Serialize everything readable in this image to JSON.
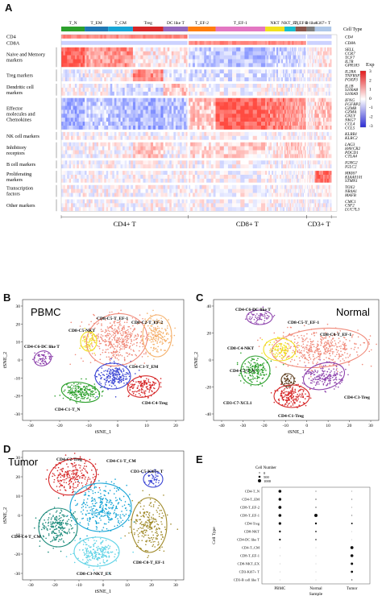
{
  "panel_labels": {
    "a": "A",
    "b": "B",
    "c": "C",
    "d": "D",
    "e": "E"
  },
  "heatmap": {
    "clusters": [
      {
        "label": "T_N",
        "color": "#2ca02c"
      },
      {
        "label": "T_EM",
        "color": "#1f77b4"
      },
      {
        "label": "T_CM",
        "color": "#17a5d6"
      },
      {
        "label": "Treg",
        "color": "#d62728"
      },
      {
        "label": "DC like T",
        "color": "#9467bd"
      },
      {
        "label": "T_EF-2",
        "color": "#ff7f0e"
      },
      {
        "label": "T_EF-1",
        "color": "#e377c2"
      },
      {
        "label": "NKT",
        "color": "#f1e11d"
      },
      {
        "label": "NKT_EX",
        "color": "#17becf"
      },
      {
        "label": "T_EF-1",
        "color": "#8c564b"
      },
      {
        "label": "B-like",
        "color": "#7f7f7f"
      },
      {
        "label": "Ki67+ T",
        "color": "#aec7e8"
      }
    ],
    "cell_type_label": "Cell Type",
    "categories": [
      {
        "name": "CD4",
        "genes": [
          "CD4"
        ]
      },
      {
        "name": "CD8A",
        "genes": [
          "CD8A"
        ]
      },
      {
        "name": "Naive and Memory markers",
        "genes": [
          "SELL",
          "CCR7",
          "TCF7",
          "IL7R",
          "GPR183"
        ]
      },
      {
        "name": "Treg markers",
        "genes": [
          "IL2RA",
          "TNFRSF4",
          "FOXP3"
        ]
      },
      {
        "name": "Dendritic cell markers",
        "genes": [
          "IL1B",
          "S100A8",
          "S100A9"
        ]
      },
      {
        "name": "Effector molecules and Chemokines",
        "genes": [
          "IFNG",
          "FGFBP2",
          "GZMB",
          "GZMA",
          "GNLY",
          "NKG7",
          "CCL4",
          "CCL5"
        ]
      },
      {
        "name": "NK cell markers",
        "genes": [
          "KLRB1",
          "KLRC2"
        ]
      },
      {
        "name": "Inhibitory receptors",
        "genes": [
          "LAG3",
          "HAVCR2",
          "PDCD1",
          "CTLA4"
        ]
      },
      {
        "name": "B cell markers",
        "genes": [
          "IGHG2",
          "IGLC2"
        ]
      },
      {
        "name": "Proliferating markers",
        "genes": [
          "MKI67",
          "KIAA0101",
          "STMN1"
        ]
      },
      {
        "name": "Transcription factors",
        "genes": [
          "TOX2",
          "NR4A1",
          "MAFB"
        ]
      },
      {
        "name": "Other markers",
        "genes": [
          "CMC1",
          "CSF2",
          "LUC7L3"
        ]
      }
    ],
    "legend": {
      "title": "Exp",
      "ticks": [
        "3",
        "2",
        "1",
        "0",
        "-1",
        "-2",
        "-3"
      ]
    },
    "bottom_labels": [
      "CD4+ T",
      "CD8+ T",
      "CD3+ T"
    ]
  },
  "panel_b": {
    "title": "PBMC",
    "xlabel": "tSNE_1",
    "ylabel": "tSNE_2",
    "xticks": [
      "-30",
      "-20",
      "-10",
      "0",
      "10",
      "20"
    ],
    "yticks": [
      "30",
      "20",
      "10",
      "0",
      "-10",
      "-20",
      "-30"
    ],
    "labels": [
      "CD8-C5-T_EF-1",
      "CD8-C2-T_EF-2",
      "CD8-C5-NKT",
      "CD4-C6-DC like T",
      "CD4-C3-T_EM",
      "CD4-C4-Treg",
      "CD4-C1-T_N"
    ]
  },
  "panel_c": {
    "title": "Normal",
    "xlabel": "tSNE_1",
    "ylabel": "tSNE_2",
    "xticks": [
      "-40",
      "-30",
      "-20",
      "-10",
      "0",
      "10",
      "20",
      "30"
    ],
    "yticks": [
      "40",
      "20",
      "0",
      "-20",
      "-40"
    ],
    "labels": [
      "CD4-C6-DC like T",
      "CD8-C5-T_EF-1",
      "CD8-C0-T_EF-1",
      "CD8-C4-NKT",
      "CD4-C2-T_N",
      "CD4-C3-Treg",
      "CD3-C7-XCL1",
      "CD4-C1-Treg"
    ]
  },
  "panel_d": {
    "title": "Tumor",
    "xlabel": "tSNE_1",
    "ylabel": "tSNE_2",
    "xticks": [
      "-30",
      "-20",
      "-10",
      "0",
      "10",
      "20",
      "30"
    ],
    "yticks": [
      "30",
      "20",
      "10",
      "0",
      "-10",
      "-20",
      "-30"
    ],
    "labels": [
      "CD4-C2-Treg",
      "CD4-C1-T_CM",
      "CD3-C5-Ki67+ T",
      "CD4-C4-T_CM",
      "CD8-C0-T_EF-1",
      "CD8-C3-NKT_EX"
    ]
  },
  "panel_e": {
    "legend_title": "Cell Number",
    "legend_items": [
      "0",
      "500",
      "1000"
    ],
    "ylabel": "Cell Type",
    "xlabel": "Sample",
    "samples": [
      "PBMC",
      "Normal",
      "Tumor"
    ],
    "cell_types": [
      "CD4-T_N",
      "CD4-T_EM",
      "CD8-T_EF-2",
      "CD8-T_EF-1",
      "CD4-Treg",
      "CD8-NKT",
      "CD4-DC like T",
      "CD4-T_CM",
      "CD8-T_EF-1",
      "CD8-NKT_EX",
      "CD3-Ki67+ T",
      "CD3-B cell like T"
    ]
  }
}
